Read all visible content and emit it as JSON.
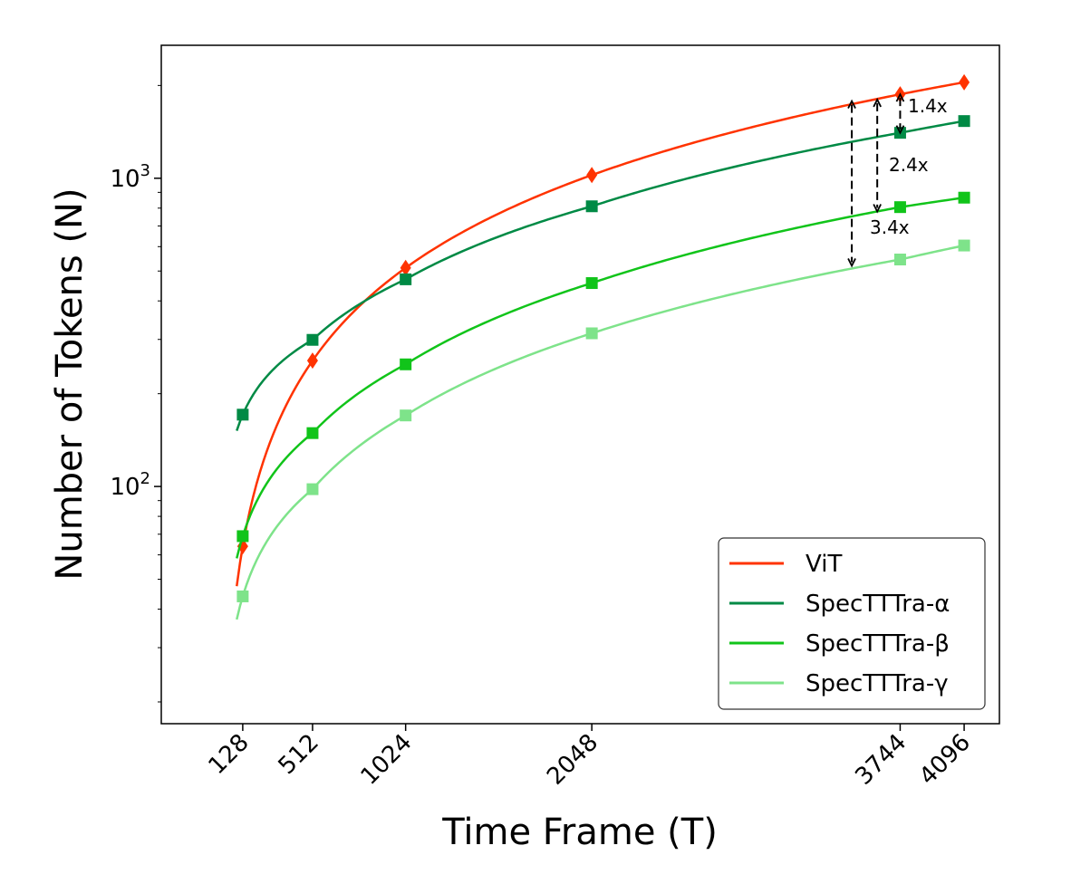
{
  "chart_data": {
    "type": "line",
    "xlabel": "Time Frame (T)",
    "ylabel": "Number of Tokens (N)",
    "yscale": "log",
    "xlim": [
      -320,
      4290
    ],
    "ylim": [
      17,
      2700
    ],
    "x_ticks": [
      128,
      512,
      1024,
      2048,
      3744,
      4096
    ],
    "y_ticks": [
      {
        "value": 100,
        "base": "10",
        "exp": "2"
      },
      {
        "value": 1000,
        "base": "10",
        "exp": "3"
      }
    ],
    "legend_position": "lower right",
    "series": [
      {
        "name": "ViT",
        "color": "#ff3300",
        "marker": "diamond",
        "x": [
          128,
          512,
          1024,
          2048,
          3744,
          4096
        ],
        "y": [
          64,
          256,
          512,
          1024,
          1872,
          2048
        ]
      },
      {
        "name": "SpecTTTra-α",
        "color": "#008a45",
        "marker": "square",
        "x": [
          128,
          512,
          1024,
          2048,
          3744,
          4096
        ],
        "y": [
          171,
          299,
          470,
          811,
          1404,
          1533
        ]
      },
      {
        "name": "SpecTTTra-β",
        "color": "#11c41a",
        "marker": "square",
        "x": [
          128,
          512,
          1024,
          2048,
          3744,
          4096
        ],
        "y": [
          69,
          149,
          249,
          457,
          806,
          865
        ]
      },
      {
        "name": "SpecTTTra-γ",
        "color": "#7ee38a",
        "marker": "square",
        "x": [
          128,
          512,
          1024,
          2048,
          3744,
          4096
        ],
        "y": [
          44,
          98,
          170,
          314,
          545,
          605
        ]
      }
    ],
    "annotations": [
      {
        "text": "1.4x",
        "x": 3744,
        "from": 1872,
        "to": 1404
      },
      {
        "text": "2.4x",
        "x": 3618,
        "from": 1800,
        "to": 780
      },
      {
        "text": "3.4x",
        "x": 3478,
        "from": 1780,
        "to": 520
      }
    ]
  }
}
